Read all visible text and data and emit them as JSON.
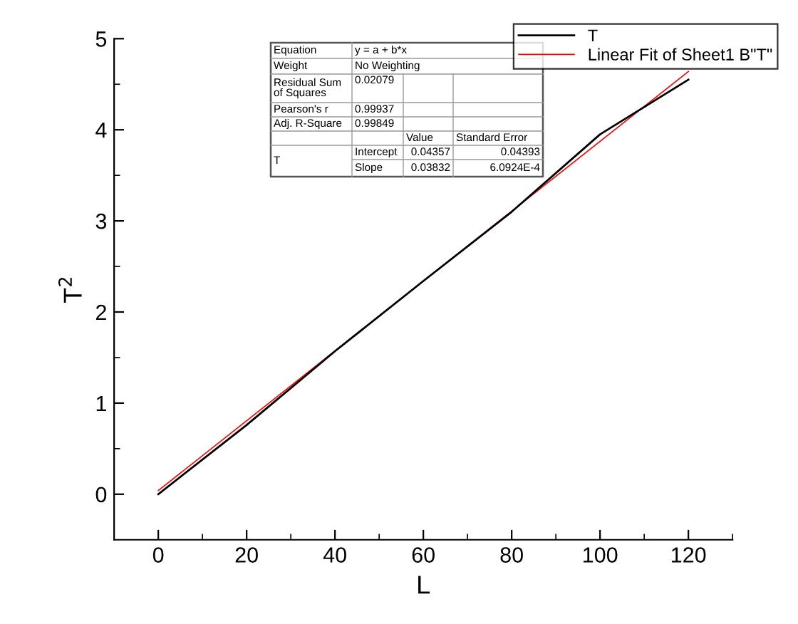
{
  "chart_data": {
    "type": "line",
    "xlabel": "L",
    "ylabel": "T$^{2}$",
    "x": [
      0,
      20,
      40,
      60,
      80,
      100,
      120
    ],
    "series": [
      {
        "name": "T",
        "color": "#000000",
        "values": [
          0,
          0.76,
          1.57,
          2.34,
          3.1,
          3.95,
          4.55
        ]
      },
      {
        "name": "Linear Fit of Sheet1 B\"T\"",
        "color": "#ff0000",
        "type": "line",
        "x": [
          0,
          120
        ],
        "values": [
          0.04,
          4.64
        ]
      }
    ],
    "xlim": [
      -10,
      130
    ],
    "ylim": [
      -0.5,
      5
    ],
    "xticks": [
      0,
      {
        "value": 10,
        "label": null
      },
      20,
      {
        "value": 30,
        "label": null
      },
      40,
      {
        "value": 50,
        "label": null
      },
      60,
      {
        "value": 70,
        "label": null
      },
      80,
      {
        "value": 90,
        "label": null
      },
      100,
      {
        "value": 110,
        "label": null
      },
      120,
      {
        "value": 130,
        "label": null
      }
    ],
    "yticks": [
      0,
      {
        "value": 0.5,
        "label": null
      },
      1,
      {
        "value": 1.5,
        "label": null
      },
      2,
      {
        "value": 2.5,
        "label": null
      },
      3,
      {
        "value": 3.5,
        "label": null
      },
      4,
      {
        "value": 4.5,
        "label": null
      },
      5
    ],
    "grid": false,
    "legend": "top right",
    "marker": "none",
    "line_style": "solid",
    "annotations": [
      "Equation",
      "y = a + b*x",
      "Weight",
      "No Weighting",
      "Residual Sum\nof Squares",
      "0.02079",
      "Pearson's r",
      "0.99937",
      "Adj. R-Square",
      "0.99849",
      "Value",
      "Standard Error",
      "T",
      "Intercept",
      "0.04357",
      "0.04393",
      "Slope",
      "0.03832",
      "6.0924E-4"
    ]
  }
}
